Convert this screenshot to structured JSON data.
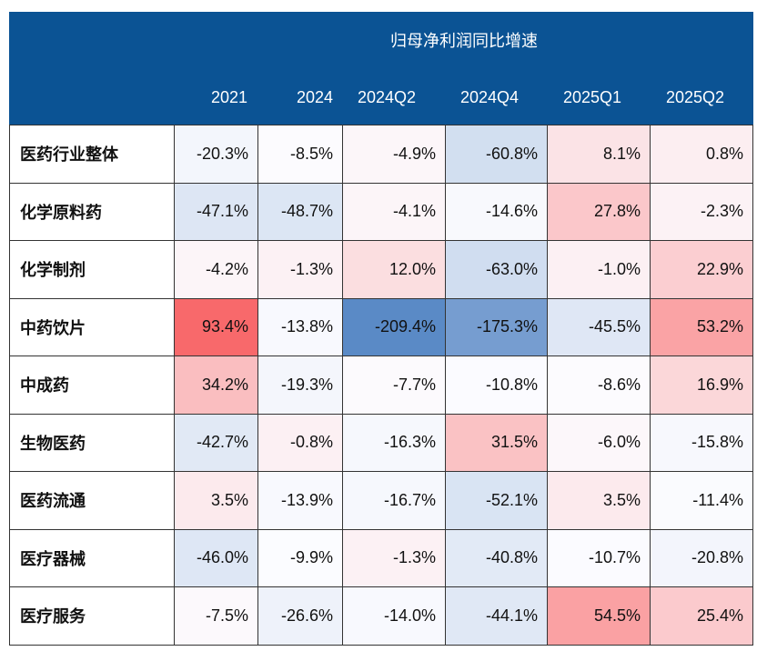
{
  "chart_data": {
    "type": "table",
    "title": "归母净利润同比增速",
    "unit": "%",
    "columns": [
      "2021",
      "2024",
      "2024Q2",
      "2024Q4",
      "2025Q1",
      "2025Q2"
    ],
    "rows": [
      {
        "label": "医药行业整体",
        "values": [
          -20.3,
          -8.5,
          -4.9,
          -60.8,
          8.1,
          0.8
        ]
      },
      {
        "label": "化学原料药",
        "values": [
          -47.1,
          -48.7,
          -4.1,
          -14.6,
          27.8,
          -2.3
        ]
      },
      {
        "label": "化学制剂",
        "values": [
          -4.2,
          -1.3,
          12.0,
          -63.0,
          -1.0,
          22.9
        ]
      },
      {
        "label": "中药饮片",
        "values": [
          93.4,
          -13.8,
          -209.4,
          -175.3,
          -45.5,
          53.2
        ]
      },
      {
        "label": "中成药",
        "values": [
          34.2,
          -19.3,
          -7.7,
          -10.8,
          -8.6,
          16.9
        ]
      },
      {
        "label": "生物医药",
        "values": [
          -42.7,
          -0.8,
          -16.3,
          31.5,
          -6.0,
          -15.8
        ]
      },
      {
        "label": "医药流通",
        "values": [
          3.5,
          -13.9,
          -16.7,
          -52.1,
          3.5,
          -11.4
        ]
      },
      {
        "label": "医疗器械",
        "values": [
          -46.0,
          -9.9,
          -1.3,
          -40.8,
          -10.7,
          -20.8
        ]
      },
      {
        "label": "医疗服务",
        "values": [
          -7.5,
          -26.6,
          -14.0,
          -44.1,
          54.5,
          25.4
        ]
      }
    ],
    "color_scale": {
      "low": "#5A8AC6",
      "mid": "#FCFCFF",
      "high": "#F8696B"
    }
  },
  "colors": {
    "header_bg": "#0B5394",
    "header_text": "#FFFFFF",
    "grid_line": "#333333"
  }
}
